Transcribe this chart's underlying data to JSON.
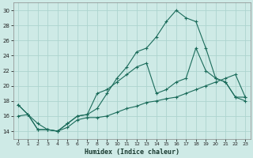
{
  "xlabel": "Humidex (Indice chaleur)",
  "bg_color": "#ceeae6",
  "grid_color": "#add4cf",
  "line_color": "#1a6b5a",
  "xlim": [
    -0.5,
    23.5
  ],
  "ylim": [
    13,
    31
  ],
  "xticks": [
    0,
    1,
    2,
    3,
    4,
    5,
    6,
    7,
    8,
    9,
    10,
    11,
    12,
    13,
    14,
    15,
    16,
    17,
    18,
    19,
    20,
    21,
    22,
    23
  ],
  "yticks": [
    14,
    16,
    18,
    20,
    22,
    24,
    26,
    28,
    30
  ],
  "line1_x": [
    0,
    1,
    2,
    3,
    4,
    5,
    6,
    7,
    8,
    9,
    10,
    11,
    12,
    13,
    14,
    15,
    16,
    17,
    18,
    19,
    20,
    21,
    22,
    23
  ],
  "line1_y": [
    17.5,
    16.2,
    14.2,
    14.2,
    14.0,
    15.0,
    16.0,
    16.2,
    17.0,
    19.0,
    21.0,
    22.5,
    24.5,
    25.0,
    26.5,
    28.5,
    30.0,
    29.0,
    28.5,
    25.0,
    21.0,
    20.5,
    18.5,
    18.5
  ],
  "line2_x": [
    0,
    1,
    2,
    3,
    4,
    5,
    6,
    7,
    8,
    9,
    10,
    11,
    12,
    13,
    14,
    15,
    16,
    17,
    18,
    19,
    20,
    21,
    22,
    23
  ],
  "line2_y": [
    17.5,
    16.2,
    14.2,
    14.2,
    14.0,
    15.0,
    16.0,
    16.2,
    19.0,
    19.5,
    20.5,
    21.5,
    22.5,
    23.0,
    19.0,
    19.5,
    20.5,
    21.0,
    25.0,
    22.0,
    21.0,
    20.5,
    18.5,
    18.0
  ],
  "line3_x": [
    0,
    1,
    2,
    3,
    4,
    5,
    6,
    7,
    8,
    9,
    10,
    11,
    12,
    13,
    14,
    15,
    16,
    17,
    18,
    19,
    20,
    21,
    22,
    23
  ],
  "line3_y": [
    16.0,
    16.2,
    15.0,
    14.2,
    14.0,
    14.5,
    15.5,
    15.8,
    15.8,
    16.0,
    16.5,
    17.0,
    17.3,
    17.8,
    18.0,
    18.3,
    18.5,
    19.0,
    19.5,
    20.0,
    20.5,
    21.0,
    21.5,
    18.5
  ]
}
